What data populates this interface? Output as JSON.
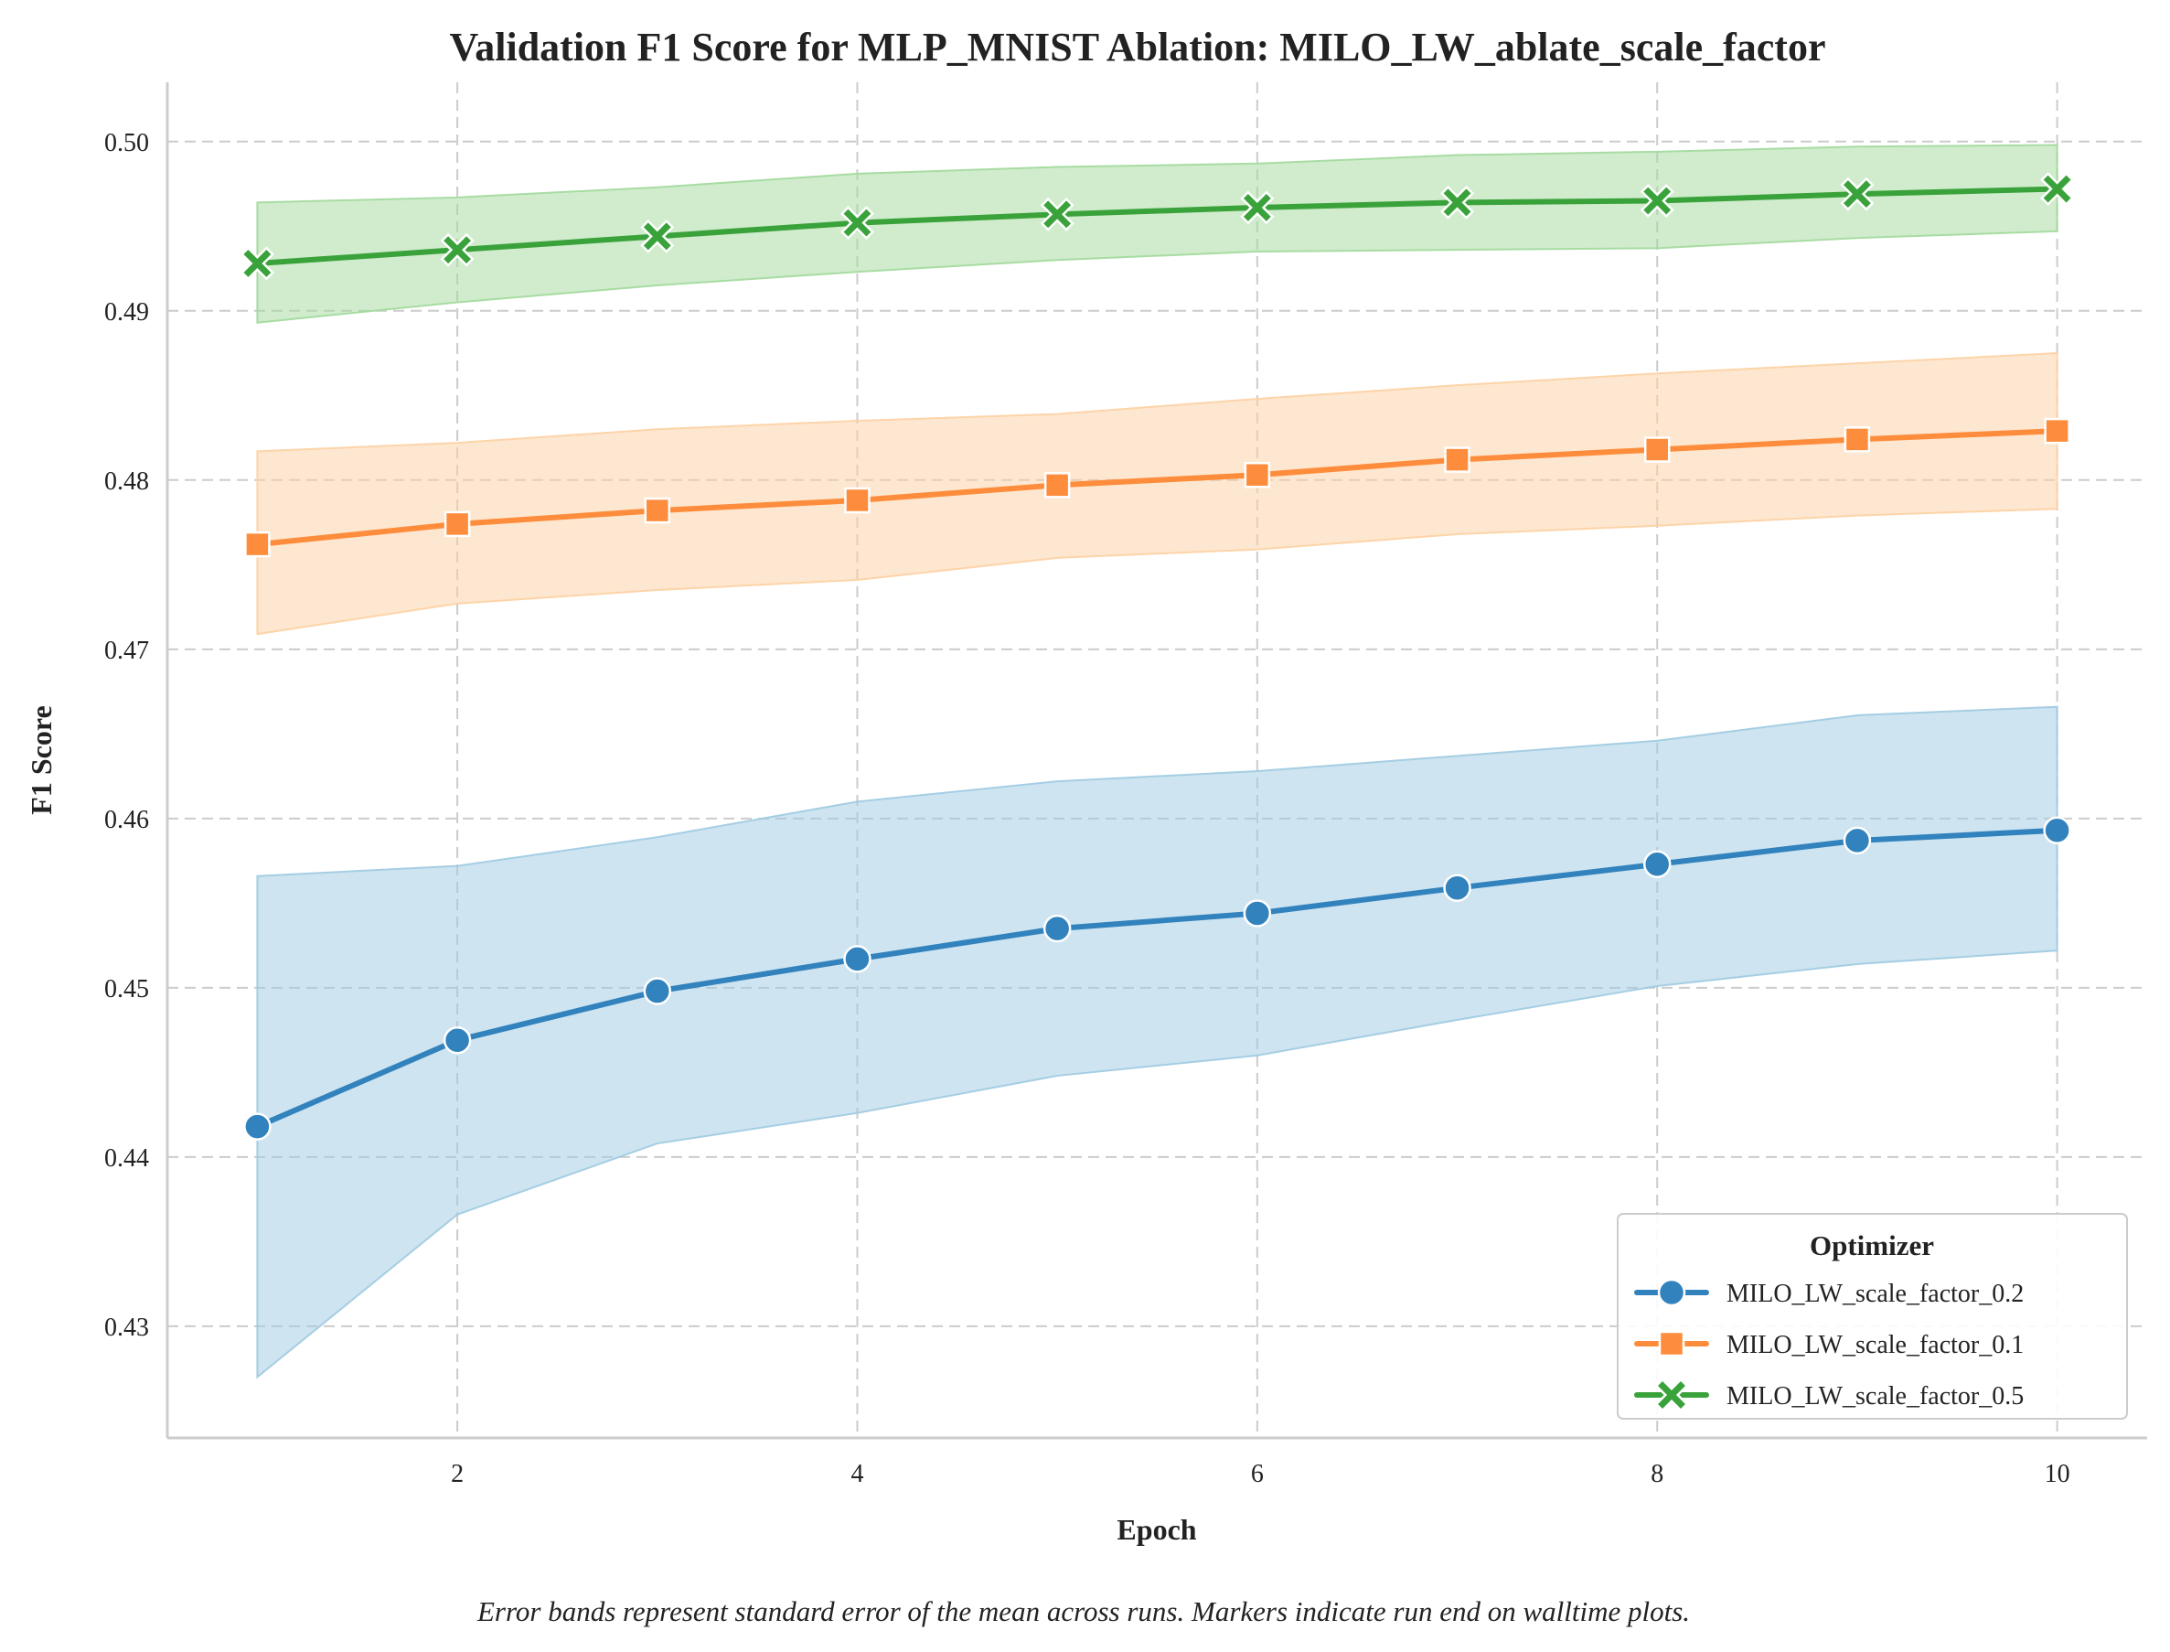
{
  "chart_data": {
    "type": "line",
    "title": "Validation F1 Score for MLP_MNIST Ablation: MILO_LW_ablate_scale_factor",
    "xlabel": "Epoch",
    "ylabel": "F1 Score",
    "caption": "Error bands represent standard error of the mean across runs. Markers indicate run end on walltime plots.",
    "xlim": [
      0.55,
      10.45
    ],
    "ylim": [
      0.4234,
      0.5035
    ],
    "xticks": [
      2,
      4,
      6,
      8,
      10
    ],
    "yticks": [
      0.43,
      0.44,
      0.45,
      0.46,
      0.47,
      0.48,
      0.49,
      0.5
    ],
    "ytick_labels": [
      "0.43",
      "0.44",
      "0.45",
      "0.46",
      "0.47",
      "0.48",
      "0.49",
      "0.50"
    ],
    "grid": true,
    "legend": {
      "title": "Optimizer",
      "placement": "lower-right"
    },
    "x": [
      1,
      2,
      3,
      4,
      5,
      6,
      7,
      8,
      9,
      10
    ],
    "series": [
      {
        "name": "MILO_LW_scale_factor_0.2",
        "color": "#3182bd",
        "band_color": "#9ecae1",
        "marker": "circle",
        "values": [
          0.4418,
          0.4469,
          0.4498,
          0.4517,
          0.4535,
          0.4544,
          0.4559,
          0.4573,
          0.4587,
          0.4593
        ],
        "lower": [
          0.427,
          0.4366,
          0.4408,
          0.4426,
          0.4448,
          0.446,
          0.4481,
          0.4501,
          0.4514,
          0.4522
        ],
        "upper": [
          0.4566,
          0.4572,
          0.4589,
          0.461,
          0.4622,
          0.4628,
          0.4637,
          0.4646,
          0.4661,
          0.4666
        ]
      },
      {
        "name": "MILO_LW_scale_factor_0.1",
        "color": "#fd8d3c",
        "band_color": "#fdd0a2",
        "marker": "square",
        "values": [
          0.4762,
          0.4774,
          0.4782,
          0.4788,
          0.4797,
          0.4803,
          0.4812,
          0.4818,
          0.4824,
          0.4829
        ],
        "lower": [
          0.4709,
          0.4727,
          0.4735,
          0.4741,
          0.4754,
          0.4759,
          0.4768,
          0.4773,
          0.4779,
          0.4783
        ],
        "upper": [
          0.4817,
          0.4822,
          0.483,
          0.4835,
          0.4839,
          0.4848,
          0.4856,
          0.4863,
          0.4869,
          0.4875
        ]
      },
      {
        "name": "MILO_LW_scale_factor_0.5",
        "color": "#3aa23a",
        "band_color": "#a1d99b",
        "marker": "x",
        "values": [
          0.4928,
          0.4936,
          0.4944,
          0.4952,
          0.4957,
          0.4961,
          0.4964,
          0.4965,
          0.4969,
          0.4972
        ],
        "lower": [
          0.4893,
          0.4905,
          0.4915,
          0.4923,
          0.493,
          0.4935,
          0.4936,
          0.4937,
          0.4943,
          0.4947
        ],
        "upper": [
          0.4964,
          0.4967,
          0.4973,
          0.4981,
          0.4985,
          0.4987,
          0.4992,
          0.4994,
          0.4997,
          0.4998
        ]
      }
    ]
  }
}
